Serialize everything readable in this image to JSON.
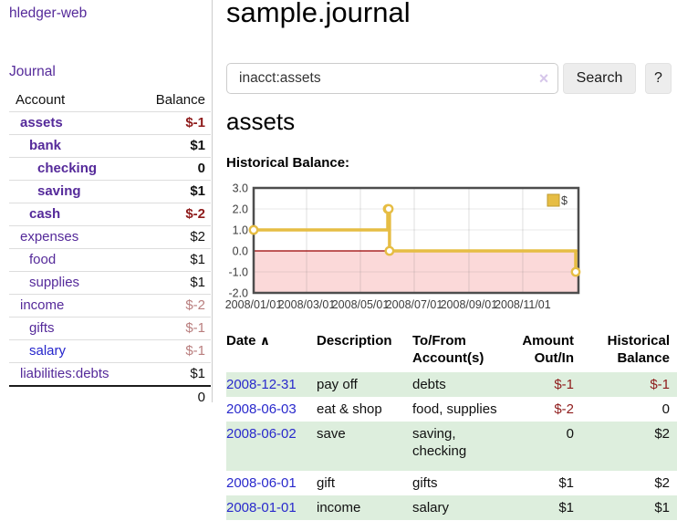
{
  "app": {
    "brand": "hledger-web",
    "nav": {
      "journal": "Journal"
    }
  },
  "sidebar": {
    "header": {
      "account": "Account",
      "balance": "Balance"
    },
    "accounts": [
      {
        "name": "assets",
        "balance": "$-1",
        "depth": 1,
        "bold": true,
        "balance_tone": "neg-strong",
        "link_color": "purple"
      },
      {
        "name": "bank",
        "balance": "$1",
        "depth": 2,
        "bold": true,
        "balance_tone": "normal",
        "link_color": "purple"
      },
      {
        "name": "checking",
        "balance": "0",
        "depth": 3,
        "bold": true,
        "balance_tone": "normal",
        "link_color": "purple"
      },
      {
        "name": "saving",
        "balance": "$1",
        "depth": 3,
        "bold": true,
        "balance_tone": "normal",
        "link_color": "purple"
      },
      {
        "name": "cash",
        "balance": "$-2",
        "depth": 2,
        "bold": true,
        "balance_tone": "neg-strong",
        "link_color": "purple"
      },
      {
        "name": "expenses",
        "balance": "$2",
        "depth": 1,
        "bold": false,
        "balance_tone": "normal",
        "link_color": "purple"
      },
      {
        "name": "food",
        "balance": "$1",
        "depth": 2,
        "bold": false,
        "balance_tone": "normal",
        "link_color": "purple"
      },
      {
        "name": "supplies",
        "balance": "$1",
        "depth": 2,
        "bold": false,
        "balance_tone": "normal",
        "link_color": "purple"
      },
      {
        "name": "income",
        "balance": "$-2",
        "depth": 1,
        "bold": false,
        "balance_tone": "neg-soft",
        "link_color": "purple"
      },
      {
        "name": "gifts",
        "balance": "$-1",
        "depth": 2,
        "bold": false,
        "balance_tone": "neg-soft",
        "link_color": "purple"
      },
      {
        "name": "salary",
        "balance": "$-1",
        "depth": 2,
        "bold": false,
        "balance_tone": "neg-soft",
        "link_color": "blue"
      },
      {
        "name": "liabilities:debts",
        "balance": "$1",
        "depth": 1,
        "bold": false,
        "balance_tone": "normal",
        "link_color": "purple"
      }
    ],
    "total": "0"
  },
  "main": {
    "title": "sample.journal",
    "search": {
      "value": "inacct:assets",
      "clear_icon": "×",
      "button_label": "Search",
      "help_label": "?"
    },
    "account_heading": "assets",
    "chart_label": "Historical Balance:"
  },
  "chart_data": {
    "type": "line",
    "step": true,
    "title": "Historical Balance",
    "legend": {
      "label": "$",
      "position": "top-right"
    },
    "series": [
      {
        "name": "$",
        "color": "#e6bd44",
        "points": [
          {
            "date": "2008-01-01",
            "day": 0,
            "value": 1
          },
          {
            "date": "2008-06-01",
            "day": 152,
            "value": 2
          },
          {
            "date": "2008-06-02",
            "day": 153,
            "value": 2
          },
          {
            "date": "2008-06-03",
            "day": 154,
            "value": 0
          },
          {
            "date": "2008-12-31",
            "day": 365,
            "value": -1
          }
        ]
      }
    ],
    "x_ticks": [
      {
        "label": "2008/01/01",
        "day": 0
      },
      {
        "label": "2008/03/01",
        "day": 60
      },
      {
        "label": "2008/05/01",
        "day": 121
      },
      {
        "label": "2008/07/01",
        "day": 182
      },
      {
        "label": "2008/09/01",
        "day": 244
      },
      {
        "label": "2008/11/01",
        "day": 305
      }
    ],
    "y_ticks": [
      3.0,
      2.0,
      1.0,
      0.0,
      -1.0,
      -2.0
    ],
    "ylim": [
      -2,
      3
    ],
    "grid": true,
    "negative_region_color": "#fbd9d9",
    "zero_line_color": "#990000",
    "border_color": "#4d4d4d"
  },
  "register": {
    "headers": {
      "date": "Date",
      "sort_icon": "∧",
      "description": "Description",
      "accounts": "To/From Account(s)",
      "amount": "Amount Out/In",
      "balance": "Historical Balance"
    },
    "rows": [
      {
        "date": "2008-12-31",
        "description": "pay off",
        "accounts": "debts",
        "amount": "$-1",
        "balance": "$-1"
      },
      {
        "date": "2008-06-03",
        "description": "eat & shop",
        "accounts": "food, supplies",
        "amount": "$-2",
        "balance": "0"
      },
      {
        "date": "2008-06-02",
        "description": "save",
        "accounts": "saving, checking",
        "amount": "0",
        "balance": "$2"
      },
      {
        "date": "2008-06-01",
        "description": "gift",
        "accounts": "gifts",
        "amount": "$1",
        "balance": "$2"
      },
      {
        "date": "2008-01-01",
        "description": "income",
        "accounts": "salary",
        "amount": "$1",
        "balance": "$1"
      }
    ]
  }
}
